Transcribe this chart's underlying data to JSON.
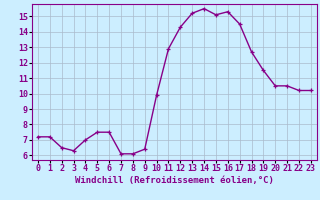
{
  "x": [
    0,
    1,
    2,
    3,
    4,
    5,
    6,
    7,
    8,
    9,
    10,
    11,
    12,
    13,
    14,
    15,
    16,
    17,
    18,
    19,
    20,
    21,
    22,
    23
  ],
  "y": [
    7.2,
    7.2,
    6.5,
    6.3,
    7.0,
    7.5,
    7.5,
    6.1,
    6.1,
    6.4,
    9.9,
    12.9,
    14.3,
    15.2,
    15.5,
    15.1,
    15.3,
    14.5,
    12.7,
    11.5,
    10.5,
    10.5,
    10.2,
    10.2
  ],
  "line_color": "#880088",
  "marker": "+",
  "marker_size": 3.5,
  "linewidth": 1.0,
  "xlabel": "Windchill (Refroidissement éolien,°C)",
  "xlim": [
    -0.5,
    23.5
  ],
  "ylim": [
    5.7,
    15.8
  ],
  "xticks": [
    0,
    1,
    2,
    3,
    4,
    5,
    6,
    7,
    8,
    9,
    10,
    11,
    12,
    13,
    14,
    15,
    16,
    17,
    18,
    19,
    20,
    21,
    22,
    23
  ],
  "yticks": [
    6,
    7,
    8,
    9,
    10,
    11,
    12,
    13,
    14,
    15
  ],
  "bg_color": "#cceeff",
  "grid_color": "#aabbcc",
  "xlabel_fontsize": 6.5,
  "tick_fontsize": 6.0
}
